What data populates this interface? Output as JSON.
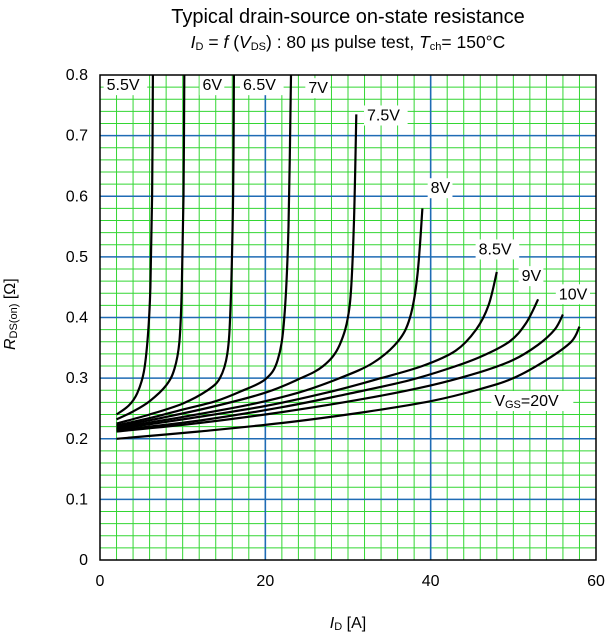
{
  "chart_data": {
    "type": "line",
    "title": "Typical drain-source on-state resistance",
    "subtitle": {
      "id_sym": "I",
      "id_sub": "D",
      "eq": " = ",
      "f": "f",
      "paren_open": " (",
      "vds_sym": "V",
      "vds_sub": "DS",
      "rest": ") : 80 µs pulse test, ",
      "tch_sym": "T",
      "tch_sub": "ch",
      "tch_val": "= 150°C"
    },
    "xlabel": {
      "sym": "I",
      "sub": "D",
      "unit": " [A]"
    },
    "ylabel": {
      "sym": "R",
      "sub": "DS(on)",
      "unit": " [Ω]"
    },
    "xlim": [
      0,
      60
    ],
    "ylim": [
      0,
      0.8
    ],
    "x_ticks": [
      "0",
      "20",
      "40",
      "60"
    ],
    "y_ticks": [
      "0",
      "0.1",
      "0.2",
      "0.3",
      "0.4",
      "0.5",
      "0.6",
      "0.7",
      "0.8"
    ],
    "series": [
      {
        "name": "5.5V",
        "points": [
          [
            2,
            0.24
          ],
          [
            3.5,
            0.255
          ],
          [
            4.5,
            0.275
          ],
          [
            5.3,
            0.31
          ],
          [
            5.8,
            0.37
          ],
          [
            6.1,
            0.45
          ],
          [
            6.3,
            0.6
          ],
          [
            6.4,
            0.8
          ]
        ]
      },
      {
        "name": "6V",
        "points": [
          [
            2,
            0.232
          ],
          [
            4,
            0.245
          ],
          [
            6,
            0.262
          ],
          [
            8,
            0.288
          ],
          [
            9,
            0.315
          ],
          [
            9.6,
            0.36
          ],
          [
            9.9,
            0.45
          ],
          [
            10.1,
            0.6
          ],
          [
            10.2,
            0.8
          ]
        ]
      },
      {
        "name": "6.5V",
        "points": [
          [
            2,
            0.225
          ],
          [
            6,
            0.24
          ],
          [
            10,
            0.258
          ],
          [
            13,
            0.28
          ],
          [
            14.5,
            0.3
          ],
          [
            15.4,
            0.34
          ],
          [
            15.8,
            0.42
          ],
          [
            16.1,
            0.6
          ],
          [
            16.2,
            0.8
          ]
        ]
      },
      {
        "name": "7V",
        "points": [
          [
            2,
            0.222
          ],
          [
            6,
            0.234
          ],
          [
            10,
            0.248
          ],
          [
            14,
            0.262
          ],
          [
            17,
            0.278
          ],
          [
            20,
            0.298
          ],
          [
            21.5,
            0.33
          ],
          [
            22.3,
            0.4
          ],
          [
            22.8,
            0.55
          ],
          [
            23.1,
            0.8
          ]
        ]
      },
      {
        "name": "7.5V",
        "points": [
          [
            2,
            0.22
          ],
          [
            8,
            0.236
          ],
          [
            14,
            0.254
          ],
          [
            20,
            0.276
          ],
          [
            24,
            0.298
          ],
          [
            27,
            0.32
          ],
          [
            29,
            0.355
          ],
          [
            30.2,
            0.42
          ],
          [
            30.7,
            0.55
          ],
          [
            31,
            0.735
          ]
        ]
      },
      {
        "name": "8V",
        "points": [
          [
            2,
            0.218
          ],
          [
            10,
            0.236
          ],
          [
            18,
            0.256
          ],
          [
            24,
            0.276
          ],
          [
            29,
            0.3
          ],
          [
            33,
            0.325
          ],
          [
            36,
            0.36
          ],
          [
            37.5,
            0.4
          ],
          [
            38.4,
            0.47
          ],
          [
            39,
            0.58
          ]
        ]
      },
      {
        "name": "8.5V",
        "points": [
          [
            2,
            0.216
          ],
          [
            10,
            0.232
          ],
          [
            20,
            0.254
          ],
          [
            28,
            0.278
          ],
          [
            34,
            0.3
          ],
          [
            39,
            0.32
          ],
          [
            43,
            0.345
          ],
          [
            45.5,
            0.38
          ],
          [
            47,
            0.42
          ],
          [
            48,
            0.475
          ]
        ]
      },
      {
        "name": "9V",
        "points": [
          [
            2,
            0.214
          ],
          [
            12,
            0.23
          ],
          [
            22,
            0.252
          ],
          [
            30,
            0.274
          ],
          [
            37,
            0.295
          ],
          [
            42,
            0.315
          ],
          [
            46,
            0.335
          ],
          [
            49.5,
            0.36
          ],
          [
            51.5,
            0.39
          ],
          [
            53,
            0.43
          ]
        ]
      },
      {
        "name": "10V",
        "points": [
          [
            2,
            0.212
          ],
          [
            12,
            0.226
          ],
          [
            22,
            0.244
          ],
          [
            32,
            0.266
          ],
          [
            40,
            0.288
          ],
          [
            46,
            0.31
          ],
          [
            50,
            0.33
          ],
          [
            53,
            0.355
          ],
          [
            55,
            0.38
          ],
          [
            56,
            0.405
          ]
        ]
      },
      {
        "name": "VGS=20V",
        "points": [
          [
            2,
            0.2
          ],
          [
            12,
            0.212
          ],
          [
            22,
            0.226
          ],
          [
            32,
            0.244
          ],
          [
            40,
            0.262
          ],
          [
            46,
            0.282
          ],
          [
            50,
            0.3
          ],
          [
            54,
            0.33
          ],
          [
            57,
            0.36
          ],
          [
            58,
            0.385
          ]
        ]
      }
    ],
    "curve_labels": [
      {
        "text": "5.5V",
        "x": 0.8,
        "y": 0.775
      },
      {
        "text": "6V",
        "x": 12.4,
        "y": 0.775
      },
      {
        "text": "6.5V",
        "x": 17.3,
        "y": 0.775
      },
      {
        "text": "7V",
        "x": 25.2,
        "y": 0.77
      },
      {
        "text": "7.5V",
        "x": 32.3,
        "y": 0.725
      },
      {
        "text": "8V",
        "x": 40.0,
        "y": 0.605
      },
      {
        "text": "8.5V",
        "x": 45.8,
        "y": 0.504
      },
      {
        "text": "9V",
        "x": 51.0,
        "y": 0.46
      },
      {
        "text": "10V",
        "x": 55.5,
        "y": 0.43
      }
    ],
    "vgs_label": {
      "sym": "V",
      "sub": "GS",
      "rest": "=20V",
      "x": 47.7,
      "y": 0.254
    },
    "grid": true,
    "colors": {
      "major_grid": "#1f6bb5",
      "minor_grid": "#33d633",
      "curve": "#000000",
      "frame": "#000000"
    }
  }
}
